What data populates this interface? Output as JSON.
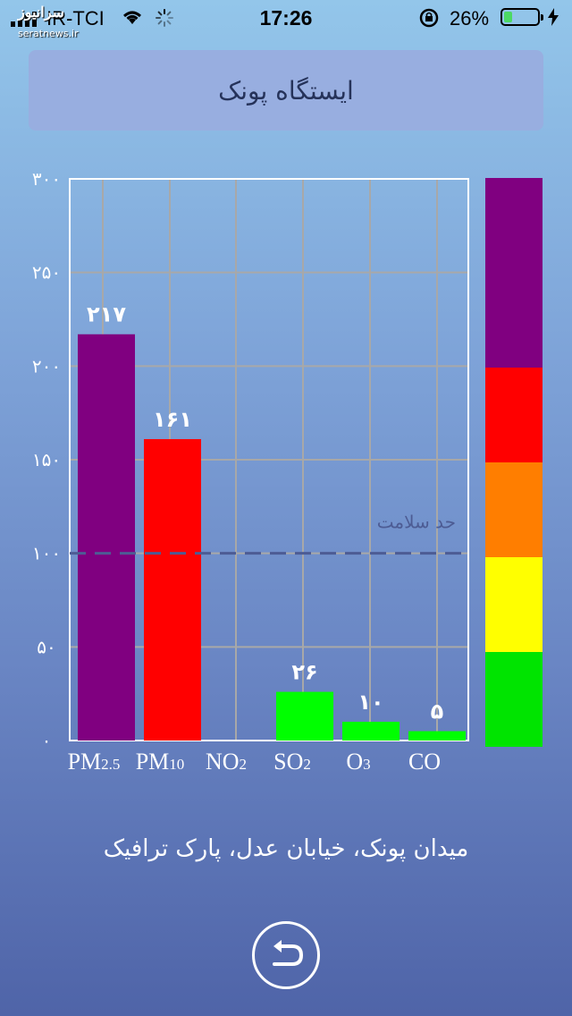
{
  "status_bar": {
    "carrier": "IR-TCI",
    "time": "17:26",
    "battery_percent": "26%",
    "battery_level": 0.26
  },
  "watermark": {
    "logo": "سرانیوز",
    "site": "seratnews.ir"
  },
  "header": {
    "title": "ایستگاه پونک"
  },
  "chart_data": {
    "type": "bar",
    "categories": [
      "PM2.5",
      "PM10",
      "NO2",
      "SO2",
      "O3",
      "CO"
    ],
    "values": [
      217,
      161,
      0,
      26,
      10,
      5
    ],
    "value_labels": [
      "۲۱۷",
      "۱۶۱",
      "",
      "۲۶",
      "۱۰",
      "۵"
    ],
    "bar_colors": [
      "#800080",
      "#ff0000",
      "#00ff00",
      "#00ff00",
      "#00ff00",
      "#00ff00"
    ],
    "ylim": [
      0,
      300
    ],
    "yticks": [
      0,
      50,
      100,
      150,
      200,
      250,
      300
    ],
    "ytick_labels": [
      "۰",
      "۵۰",
      "۱۰۰",
      "۱۵۰",
      "۲۰۰",
      "۲۵۰",
      "۳۰۰"
    ],
    "grid": true,
    "threshold": {
      "value": 100,
      "label": "حد سلامت",
      "style": "dashed"
    },
    "color_scale": [
      {
        "from": 0,
        "to": 50,
        "color": "#00e400"
      },
      {
        "from": 50,
        "to": 100,
        "color": "#ffff00"
      },
      {
        "from": 100,
        "to": 150,
        "color": "#ff7e00"
      },
      {
        "from": 150,
        "to": 200,
        "color": "#ff0000"
      },
      {
        "from": 200,
        "to": 300,
        "color": "#800080"
      }
    ]
  },
  "location": "میدان پونک، خیابان عدل، پارک ترافیک",
  "back_button": {
    "icon": "return-arrow-icon"
  }
}
